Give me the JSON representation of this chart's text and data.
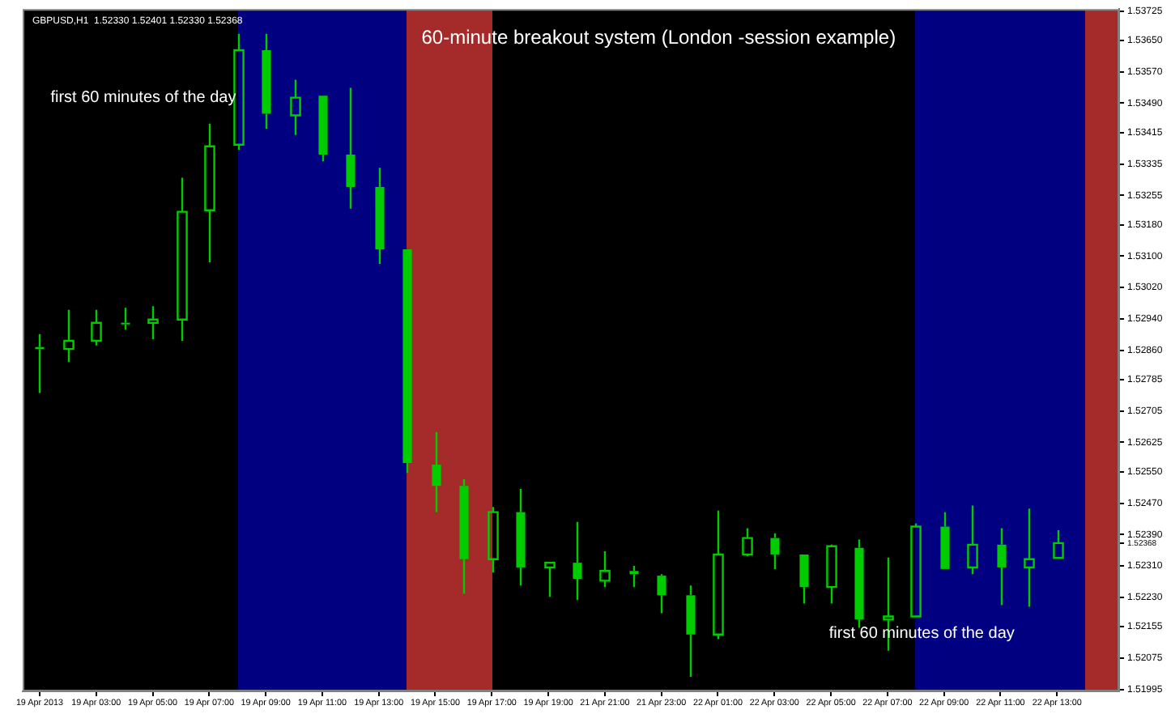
{
  "chart_data": {
    "type": "candlestick",
    "title": "60-minute breakout system (London -session example)",
    "subtitle": "GBPUSD,H1  1.52330 1.52401 1.52330 1.52368",
    "categories": [
      "19 Apr 2013",
      null,
      "19 Apr 03:00",
      null,
      "19 Apr 05:00",
      null,
      "19 Apr 07:00",
      null,
      "19 Apr 09:00",
      null,
      "19 Apr 11:00",
      null,
      "19 Apr 13:00",
      null,
      "19 Apr 15:00",
      null,
      "19 Apr 17:00",
      null,
      "19 Apr 19:00",
      null,
      "21 Apr 21:00",
      null,
      "21 Apr 23:00",
      null,
      "22 Apr 01:00",
      null,
      "22 Apr 03:00",
      null,
      "22 Apr 05:00",
      null,
      "22 Apr 07:00",
      null,
      "22 Apr 09:00",
      null,
      "22 Apr 11:00",
      null,
      "22 Apr 13:00"
    ],
    "ohlc": [
      [
        1.52868,
        1.52901,
        1.52751,
        1.52863
      ],
      [
        1.52863,
        1.52963,
        1.5283,
        1.52884
      ],
      [
        1.52884,
        1.52963,
        1.52872,
        1.5293
      ],
      [
        1.5293,
        1.52968,
        1.52913,
        1.5293
      ],
      [
        1.5293,
        1.52972,
        1.52888,
        1.52938
      ],
      [
        1.52938,
        1.533,
        1.52884,
        1.53213
      ],
      [
        1.53217,
        1.53438,
        1.53084,
        1.5338
      ],
      [
        1.53384,
        1.53667,
        1.53371,
        1.53625
      ],
      [
        1.53625,
        1.53667,
        1.53425,
        1.53463
      ],
      [
        1.53459,
        1.5355,
        1.53409,
        1.53504
      ],
      [
        1.53509,
        1.53509,
        1.53342,
        1.53359
      ],
      [
        1.53359,
        1.53529,
        1.53221,
        1.53276
      ],
      [
        1.53276,
        1.53325,
        1.5308,
        1.53117
      ],
      [
        1.53117,
        1.53117,
        1.52547,
        1.52572
      ],
      [
        1.52568,
        1.52651,
        1.52447,
        1.52514
      ],
      [
        1.52514,
        1.52531,
        1.52239,
        1.52327
      ],
      [
        1.52327,
        1.5246,
        1.52293,
        1.52447
      ],
      [
        1.52447,
        1.52506,
        1.5226,
        1.52306
      ],
      [
        1.52306,
        1.52318,
        1.52231,
        1.52318
      ],
      [
        1.52318,
        1.52422,
        1.52223,
        1.52277
      ],
      [
        1.52272,
        1.52347,
        1.52256,
        1.52297
      ],
      [
        1.52297,
        1.5231,
        1.52256,
        1.52289
      ],
      [
        1.52285,
        1.52289,
        1.52189,
        1.52235
      ],
      [
        1.52235,
        1.5226,
        1.52027,
        1.52135
      ],
      [
        1.52135,
        1.52451,
        1.52123,
        1.52339
      ],
      [
        1.52339,
        1.52406,
        1.52335,
        1.52381
      ],
      [
        1.52381,
        1.52393,
        1.52302,
        1.52339
      ],
      [
        1.52339,
        1.52339,
        1.52214,
        1.52256
      ],
      [
        1.52256,
        1.52364,
        1.52214,
        1.5236
      ],
      [
        1.52356,
        1.52377,
        1.52152,
        1.52173
      ],
      [
        1.52173,
        1.52331,
        1.52094,
        1.52181
      ],
      [
        1.52181,
        1.52418,
        1.52181,
        1.5241
      ],
      [
        1.5241,
        1.52447,
        1.52302,
        1.52302
      ],
      [
        1.52306,
        1.52464,
        1.52289,
        1.52364
      ],
      [
        1.52364,
        1.52406,
        1.5221,
        1.52306
      ],
      [
        1.52306,
        1.52456,
        1.52206,
        1.52327
      ],
      [
        1.5233,
        1.52401,
        1.5233,
        1.52368
      ]
    ],
    "color": "#00cc00",
    "ylim": [
      1.5199,
      1.5373
    ],
    "yticks": [
      {
        "value": 1.53725,
        "label": "1.53725"
      },
      {
        "value": 1.5365,
        "label": "1.53650"
      },
      {
        "value": 1.5357,
        "label": "1.53570"
      },
      {
        "value": 1.5349,
        "label": "1.53490"
      },
      {
        "value": 1.53415,
        "label": "1.53415"
      },
      {
        "value": 1.53335,
        "label": "1.53335"
      },
      {
        "value": 1.53255,
        "label": "1.53255"
      },
      {
        "value": 1.5318,
        "label": "1.53180"
      },
      {
        "value": 1.531,
        "label": "1.53100"
      },
      {
        "value": 1.5302,
        "label": "1.53020"
      },
      {
        "value": 1.5294,
        "label": "1.52940"
      },
      {
        "value": 1.5286,
        "label": "1.52860"
      },
      {
        "value": 1.52785,
        "label": "1.52785"
      },
      {
        "value": 1.52705,
        "label": "1.52705"
      },
      {
        "value": 1.52625,
        "label": "1.52625"
      },
      {
        "value": 1.5255,
        "label": "1.52550"
      },
      {
        "value": 1.5247,
        "label": "1.52470"
      },
      {
        "value": 1.5239,
        "label": "1.52390"
      },
      {
        "value": 1.52368,
        "label": "1.52368"
      },
      {
        "value": 1.5231,
        "label": "1.52310"
      },
      {
        "value": 1.5223,
        "label": "1.52230"
      },
      {
        "value": 1.52155,
        "label": "1.52155"
      },
      {
        "value": 1.52075,
        "label": "1.52075"
      },
      {
        "value": 1.51995,
        "label": "1.51995"
      }
    ],
    "annotations": [
      "first 60 minutes of the day",
      "first 60 minutes of the day"
    ],
    "grid": false,
    "legend": false
  }
}
